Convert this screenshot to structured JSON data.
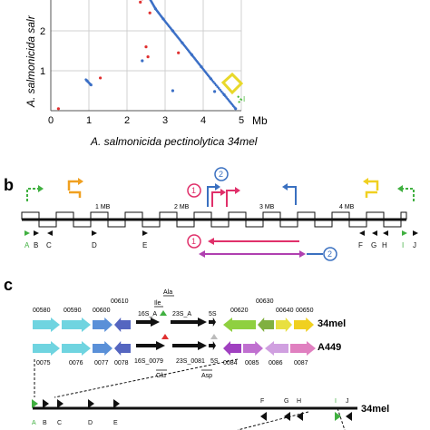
{
  "panel_a": {
    "y_axis_label": "A. salmonicida salr",
    "x_axis_label": "A. salmonicida pectinolytica 34mel",
    "x_ticks": [
      "0",
      "1",
      "2",
      "3",
      "4",
      "5"
    ],
    "x_unit": "Mb",
    "y_ticks": [
      "1",
      "2"
    ],
    "colors": {
      "forward": "#3b6fc6",
      "reverse": "#e03030",
      "highlight": "#e8d82a",
      "marker": "#4cbb3c"
    }
  },
  "panel_b": {
    "panel_label": "b",
    "scale_labels": [
      "1 MB",
      "2 MB",
      "3 MB",
      "4 MB"
    ],
    "markers": [
      "A",
      "B",
      "C",
      "D",
      "E",
      "F",
      "G",
      "H",
      "I",
      "J"
    ],
    "circle_1": "1",
    "circle_2": "2",
    "colors": {
      "orange": "#f0a020",
      "pink": "#e0306a",
      "blue": "#3a70c0",
      "yellow": "#f0d020",
      "purple": "#b040b0",
      "green": "#40b040"
    }
  },
  "panel_c": {
    "panel_label": "c",
    "row1_genome": "34mel",
    "row2_genome": "A449",
    "row1_gene_ids": [
      "00580",
      "00590",
      "00600",
      "00610",
      "00620",
      "00630",
      "00640",
      "00650"
    ],
    "row1_rrna": [
      "16S_A",
      "23S_A",
      "5S"
    ],
    "trna_top": [
      "Ala",
      "Ile"
    ],
    "row2_gene_ids": [
      "0075",
      "0076",
      "0077",
      "0078",
      "0084",
      "0085",
      "0086",
      "0087"
    ],
    "row2_rrna": [
      "16S_0079",
      "23S_0081",
      "5S"
    ],
    "trna_bottom": [
      "Glu",
      "Asp"
    ],
    "bottom_markers": [
      "A",
      "B",
      "C",
      "D",
      "E",
      "F",
      "G",
      "H",
      "I",
      "J"
    ],
    "bottom_genome": "34mel"
  },
  "chart_data": {
    "type": "scatter",
    "xlabel": "A. salmonicida pectinolytica 34mel",
    "ylabel": "A. salmonicida salr",
    "x_unit": "Mb",
    "xlim": [
      0,
      5
    ],
    "ylim": [
      0,
      3
    ],
    "x_ticks": [
      0,
      1,
      2,
      3,
      4,
      5
    ],
    "y_ticks": [
      1,
      2
    ],
    "grid": true,
    "series": [
      {
        "color": "#3b6fc6",
        "values": [
          [
            2.2,
            3.0
          ],
          [
            2.45,
            2.95
          ],
          [
            2.6,
            2.8
          ],
          [
            2.75,
            2.55
          ],
          [
            2.95,
            2.3
          ],
          [
            3.2,
            2.0
          ],
          [
            3.45,
            1.7
          ],
          [
            3.7,
            1.4
          ],
          [
            3.95,
            1.1
          ],
          [
            4.2,
            0.8
          ],
          [
            4.55,
            0.4
          ],
          [
            4.85,
            0.05
          ],
          [
            0.95,
            0.75
          ],
          [
            1.05,
            0.65
          ],
          [
            2.4,
            1.25
          ],
          [
            3.2,
            0.5
          ],
          [
            4.3,
            0.48
          ]
        ]
      },
      {
        "color": "#e03030",
        "values": [
          [
            2.35,
            2.72
          ],
          [
            2.4,
            2.8
          ],
          [
            2.6,
            2.45
          ],
          [
            2.55,
            1.35
          ],
          [
            2.5,
            1.6
          ],
          [
            0.2,
            0.05
          ],
          [
            1.3,
            0.82
          ],
          [
            3.35,
            1.45
          ]
        ]
      }
    ]
  }
}
